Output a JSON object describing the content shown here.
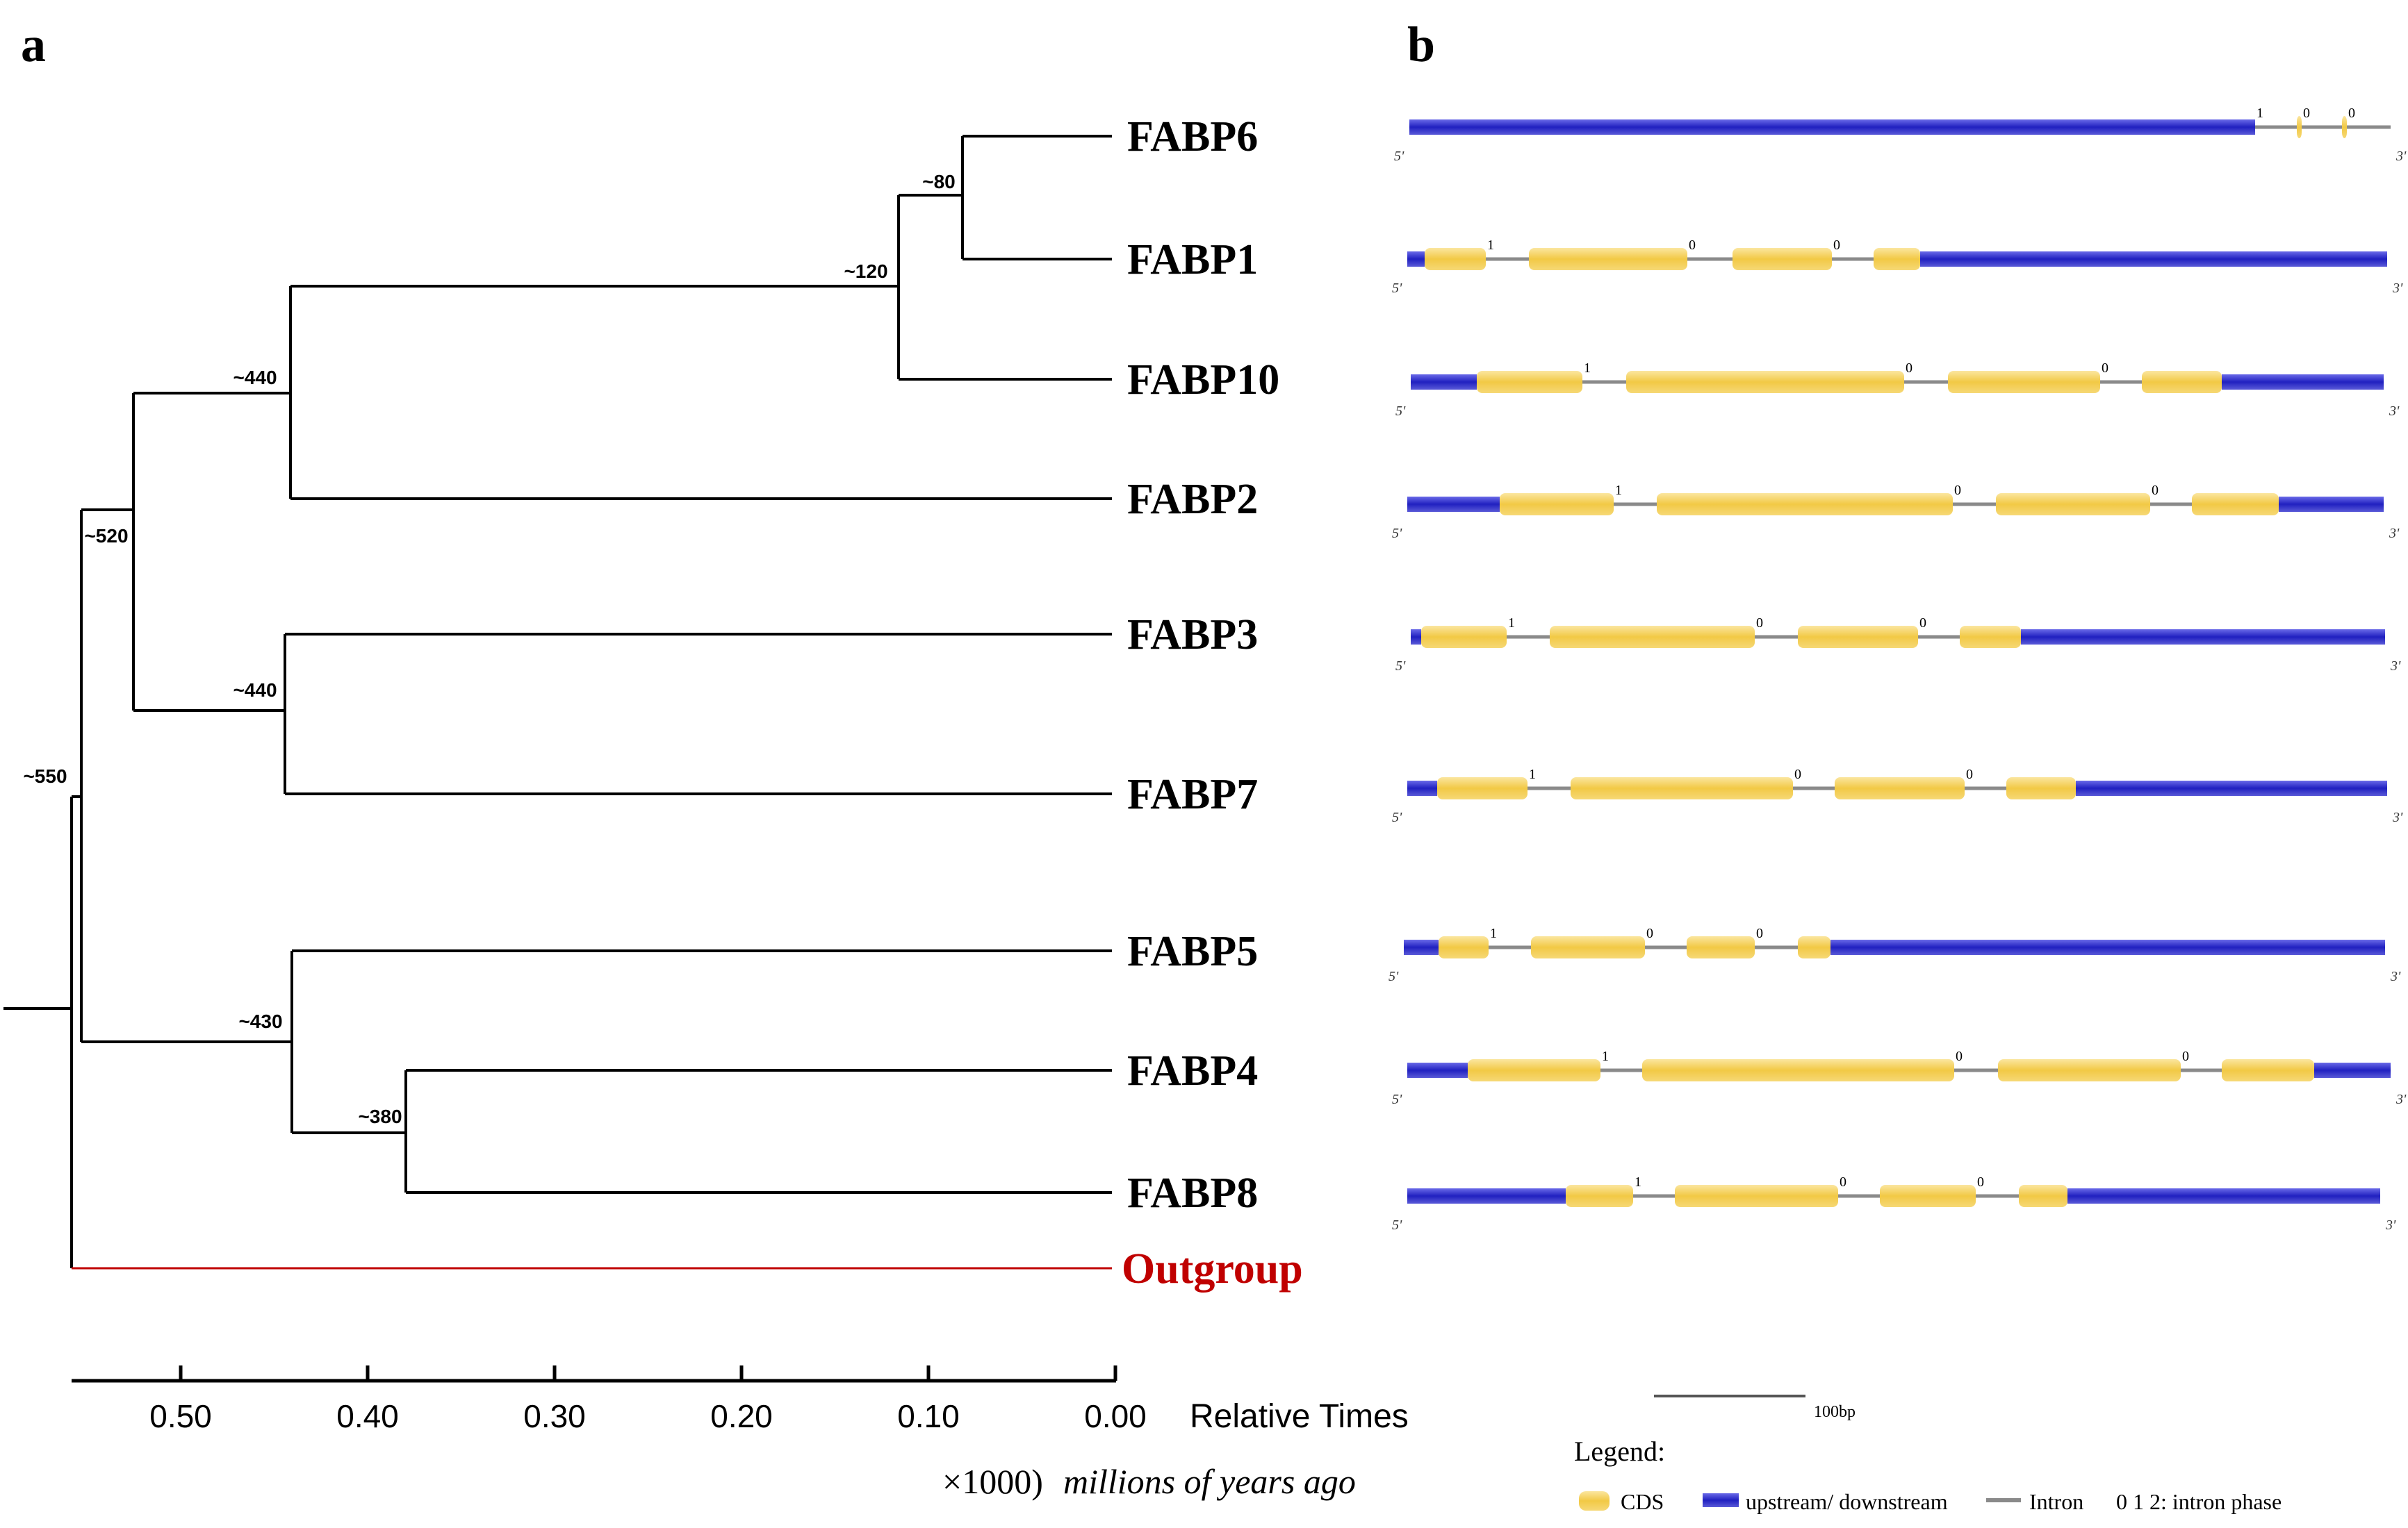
{
  "panel_a": {
    "label": "a",
    "taxa": [
      "FABP6",
      "FABP1",
      "FABP10",
      "FABP2",
      "FABP3",
      "FABP7",
      "FABP5",
      "FABP4",
      "FABP8",
      "Outgroup"
    ],
    "outgroup_color": "#c00000",
    "node_ages": {
      "fabp6_fabp1": "~80",
      "fabp6_fabp1_fabp10": "~120",
      "fabp6_fabp1_fabp10_fabp2": "~440",
      "fabp3_fabp7": "~440",
      "fabp1_to_7_group": "~520",
      "fabp4_fabp8": "~380",
      "fabp5_fabp4_fabp8": "~430",
      "root": "~550"
    },
    "axis": {
      "ticks": [
        "0.50",
        "0.40",
        "0.30",
        "0.20",
        "0.10",
        "0.00"
      ],
      "label": "Relative Times",
      "scale_prefix": "×1000)",
      "scale_unit": "millions of years ago"
    }
  },
  "panel_b": {
    "label": "b",
    "colors": {
      "cds": "#f2cf55",
      "utr": "#2b2bc4",
      "intron": "#8a8a8a"
    },
    "end_5": "5'",
    "end_3": "3'",
    "scale_bar_label": "100bp",
    "legend": {
      "title": "Legend:",
      "cds": "CDS",
      "utr": "upstream/ downstream",
      "intron": "Intron",
      "phase": "0 1 2: intron phase"
    },
    "genes": [
      {
        "name": "FABP6",
        "phases": [
          "1",
          "0",
          "0"
        ]
      },
      {
        "name": "FABP1",
        "phases": [
          "1",
          "0",
          "0"
        ]
      },
      {
        "name": "FABP10",
        "phases": [
          "1",
          "0",
          "0"
        ]
      },
      {
        "name": "FABP2",
        "phases": [
          "1",
          "0",
          "0"
        ]
      },
      {
        "name": "FABP3",
        "phases": [
          "1",
          "0",
          "0"
        ]
      },
      {
        "name": "FABP7",
        "phases": [
          "1",
          "0",
          "0"
        ]
      },
      {
        "name": "FABP5",
        "phases": [
          "1",
          "0",
          "0"
        ]
      },
      {
        "name": "FABP4",
        "phases": [
          "1",
          "0",
          "0"
        ]
      },
      {
        "name": "FABP8",
        "phases": [
          "1",
          "0",
          "0"
        ]
      }
    ]
  }
}
